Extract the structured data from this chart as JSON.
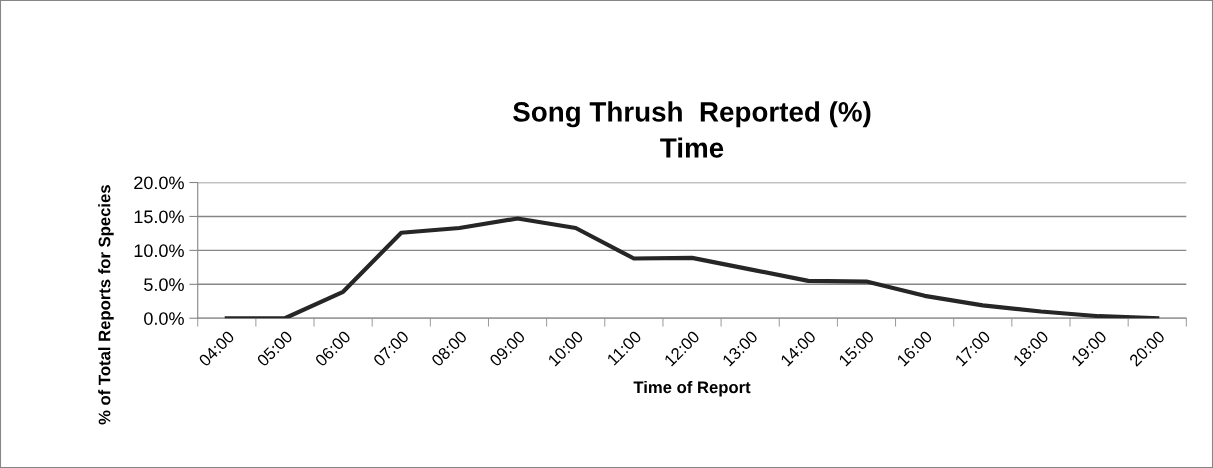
{
  "chart_data": {
    "type": "line",
    "title": "Song Thrush  Reported (%)\nTime",
    "xlabel": "Time of Report",
    "ylabel": "% of Total Reports for Species",
    "categories": [
      "04:00",
      "05:00",
      "06:00",
      "07:00",
      "08:00",
      "09:00",
      "10:00",
      "11:00",
      "12:00",
      "13:00",
      "14:00",
      "15:00",
      "16:00",
      "17:00",
      "18:00",
      "19:00",
      "20:00"
    ],
    "series": [
      {
        "color": "#262626",
        "values": [
          0,
          0,
          3.9,
          12.6,
          13.3,
          14.7,
          13.3,
          8.8,
          8.9,
          7.2,
          5.5,
          5.4,
          3.3,
          1.9,
          1.0,
          0.3,
          0.0
        ]
      }
    ],
    "ylim": [
      0,
      20
    ],
    "yticks": [
      {
        "value": 0,
        "label": "0.0%"
      },
      {
        "value": 5,
        "label": "5.0%"
      },
      {
        "value": 10,
        "label": "10.0%"
      },
      {
        "value": 15,
        "label": "15.0%"
      },
      {
        "value": 20,
        "label": "20.0%"
      }
    ],
    "grid": "y",
    "legend": false,
    "marker": "none",
    "line_style": "solid"
  }
}
